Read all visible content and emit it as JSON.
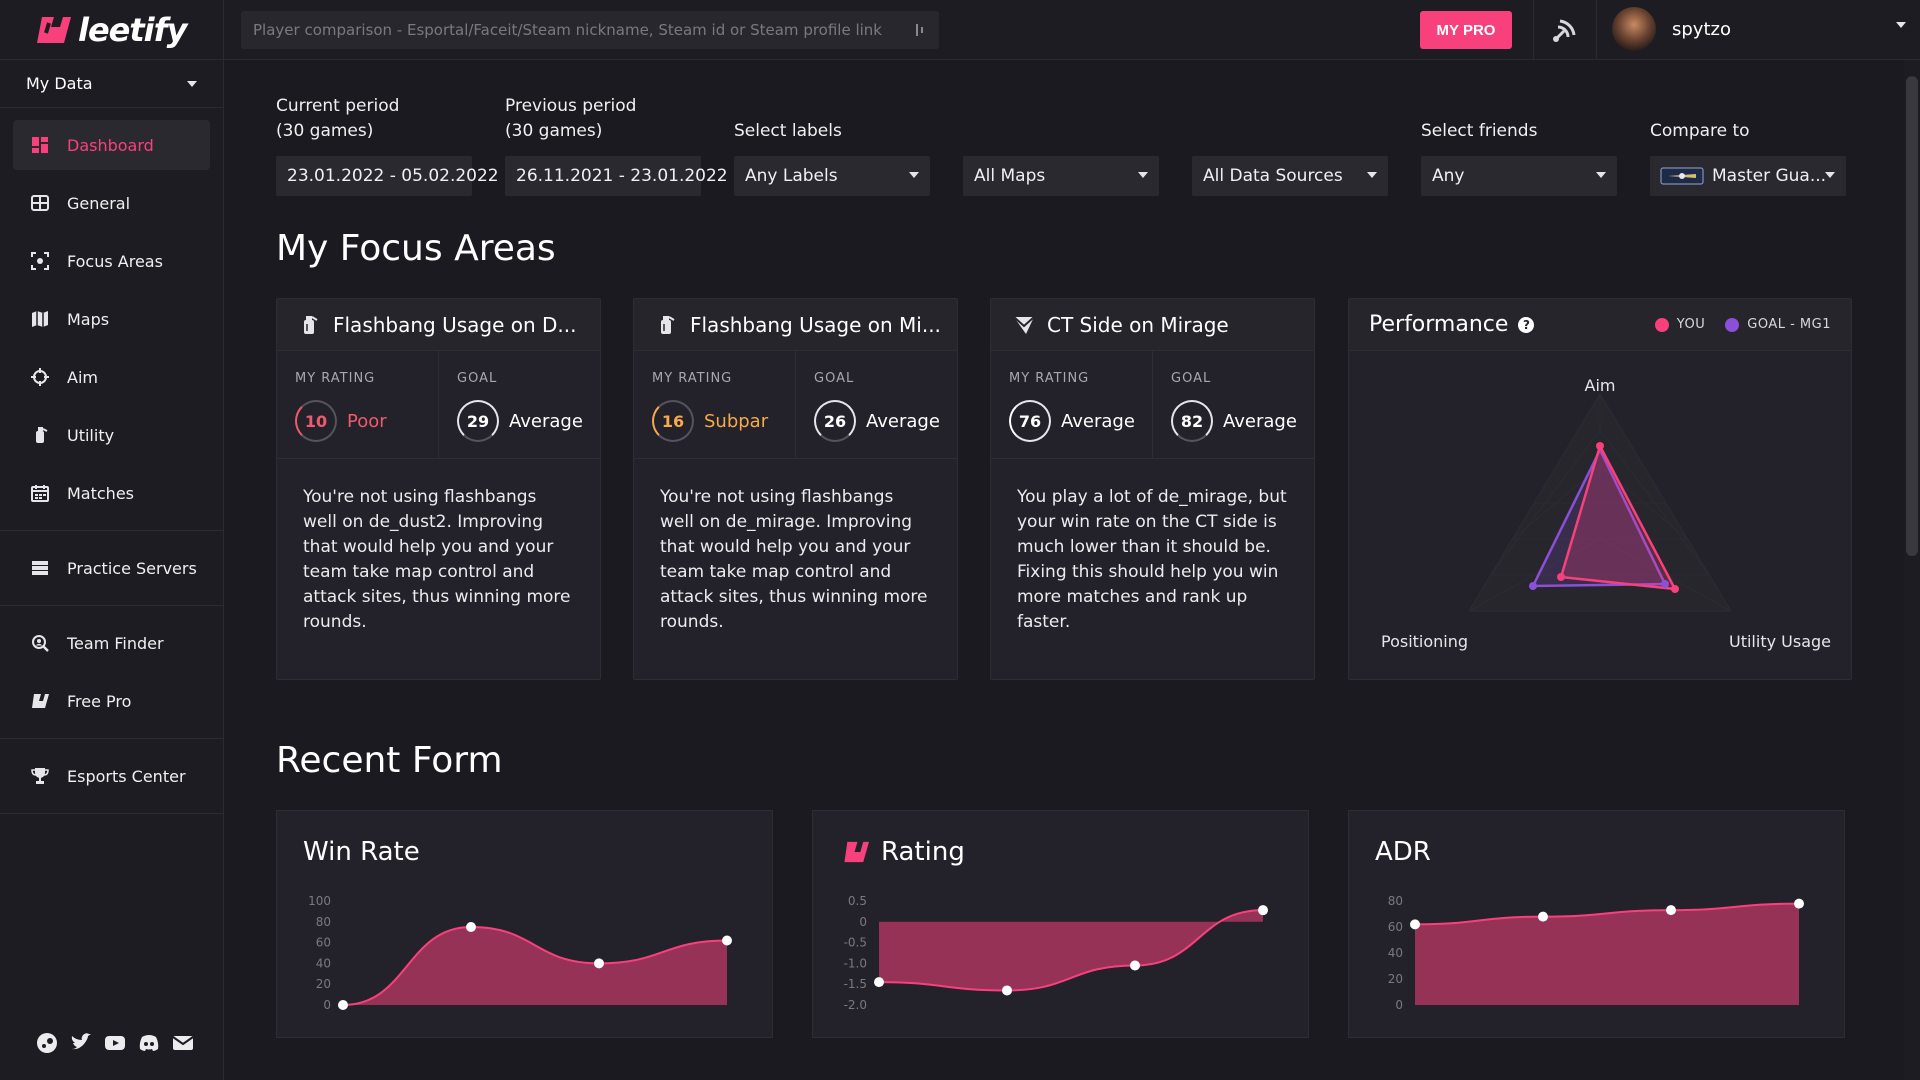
{
  "brand": {
    "name": "leetify"
  },
  "sidebar": {
    "selector": "My Data",
    "groups": [
      [
        {
          "label": "Dashboard",
          "icon": "dashboard-icon",
          "active": true
        },
        {
          "label": "General",
          "icon": "general-icon"
        },
        {
          "label": "Focus Areas",
          "icon": "focus-areas-icon"
        },
        {
          "label": "Maps",
          "icon": "map-icon"
        },
        {
          "label": "Aim",
          "icon": "crosshair-icon"
        },
        {
          "label": "Utility",
          "icon": "grenade-icon"
        },
        {
          "label": "Matches",
          "icon": "calendar-icon"
        }
      ],
      [
        {
          "label": "Practice Servers",
          "icon": "server-icon"
        }
      ],
      [
        {
          "label": "Team Finder",
          "icon": "team-search-icon"
        },
        {
          "label": "Free Pro",
          "icon": "leetify-logo-icon"
        }
      ],
      [
        {
          "label": "Esports Center",
          "icon": "trophy-icon"
        }
      ]
    ],
    "social": [
      "steam-icon",
      "twitter-icon",
      "youtube-icon",
      "discord-icon",
      "mail-icon"
    ]
  },
  "topbar": {
    "search_placeholder": "Player comparison - Esportal/Faceit/Steam nickname, Steam id or Steam profile link",
    "mypro_label": "MY PRO",
    "username": "spytzo"
  },
  "filters": {
    "current_label_1": "Current period",
    "current_label_2": "(30 games)",
    "current_value": "23.01.2022 - 05.02.2022",
    "previous_label_1": "Previous period",
    "previous_label_2": "(30 games)",
    "previous_value": "26.11.2021 - 23.01.2022",
    "labels_label": "Select labels",
    "labels_value": "Any Labels",
    "maps_value": "All Maps",
    "sources_value": "All Data Sources",
    "friends_label": "Select friends",
    "friends_value": "Any",
    "compare_label": "Compare to",
    "compare_value": "Master Gua..."
  },
  "focus": {
    "title": "My Focus Areas",
    "my_rating_label": "MY RATING",
    "goal_label": "GOAL",
    "cards": [
      {
        "title": "Flashbang Usage on D...",
        "icon": "flashbang-icon",
        "my_value": "10",
        "my_text": "Poor",
        "my_color": "#f05a6e",
        "goal_value": "29",
        "goal_text": "Average",
        "body": "You're not using flashbangs well on de_dust2. Improving that would help you and your team take map control and attack sites, thus winning more rounds."
      },
      {
        "title": "Flashbang Usage on Mi...",
        "icon": "flashbang-icon",
        "my_value": "16",
        "my_text": "Subpar",
        "my_color": "#f7a94c",
        "goal_value": "26",
        "goal_text": "Average",
        "body": "You're not using flashbangs well on de_mirage. Improving that would help you and your team take map control and attack sites, thus winning more rounds."
      },
      {
        "title": "CT Side on Mirage",
        "icon": "ct-side-icon",
        "my_value": "76",
        "my_text": "Average",
        "my_color": "#ffffff",
        "goal_value": "82",
        "goal_text": "Average",
        "body": "You play a lot of de_mirage, but your win rate on the CT side is much lower than it should be. Fixing this should help you win more matches and rank up faster."
      }
    ],
    "performance": {
      "title": "Performance",
      "legend_you": "YOU",
      "legend_goal": "GOAL - MG1",
      "color_you": "#f8407c",
      "color_goal": "#8b4fd8",
      "axes": [
        "Aim",
        "Positioning",
        "Utility Usage"
      ]
    }
  },
  "recent": {
    "title": "Recent Form",
    "color": "#f8407c",
    "charts": [
      {
        "title": "Win Rate",
        "ticks": [
          "100",
          "80",
          "60",
          "40",
          "20",
          "0"
        ],
        "ylim": [
          0,
          100
        ],
        "values": [
          0,
          75,
          40,
          62
        ]
      },
      {
        "title": "Rating",
        "ticks": [
          "0.5",
          "0",
          "-0.5",
          "-1.0",
          "-1.5",
          "-2.0"
        ],
        "ylim": [
          -2.0,
          0.5
        ],
        "values": [
          -1.45,
          -1.65,
          -1.05,
          0.28
        ]
      },
      {
        "title": "ADR",
        "ticks": [
          "80",
          "60",
          "40",
          "20",
          "0"
        ],
        "ylim": [
          0,
          80
        ],
        "values": [
          62,
          68,
          73,
          78
        ]
      }
    ]
  },
  "chart_data": [
    {
      "type": "area",
      "title": "Win Rate",
      "x": [
        1,
        2,
        3,
        4
      ],
      "values": [
        0,
        75,
        40,
        62
      ],
      "ylim": [
        0,
        100
      ]
    },
    {
      "type": "area",
      "title": "Rating",
      "x": [
        1,
        2,
        3,
        4
      ],
      "values": [
        -1.45,
        -1.65,
        -1.05,
        0.28
      ],
      "ylim": [
        -2.0,
        0.5
      ]
    },
    {
      "type": "area",
      "title": "ADR",
      "x": [
        1,
        2,
        3,
        4
      ],
      "values": [
        62,
        68,
        73,
        78
      ],
      "ylim": [
        0,
        80
      ]
    }
  ]
}
